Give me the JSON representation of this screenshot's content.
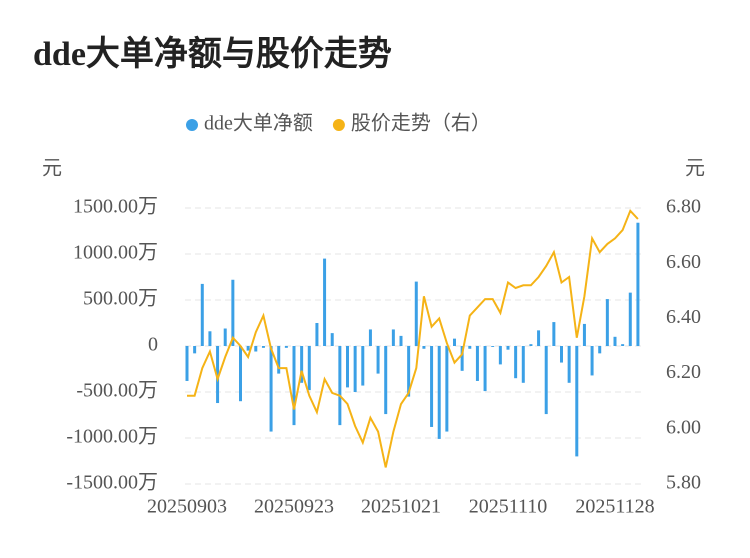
{
  "chart_data": {
    "type": "bar_line",
    "title": "dde大单净额与股价走势",
    "y_unit": "元",
    "y2_unit": "元",
    "categories": [
      "20250903",
      null,
      null,
      null,
      null,
      null,
      null,
      null,
      null,
      null,
      null,
      null,
      null,
      null,
      "20250923",
      null,
      null,
      null,
      null,
      null,
      null,
      null,
      null,
      null,
      null,
      null,
      null,
      null,
      "20251021",
      null,
      null,
      null,
      null,
      null,
      null,
      null,
      null,
      null,
      null,
      null,
      null,
      null,
      "20251110",
      null,
      null,
      null,
      null,
      null,
      null,
      null,
      null,
      null,
      null,
      null,
      null,
      null,
      "20251128",
      null,
      null,
      null
    ],
    "series": [
      {
        "name": "dde大单净额",
        "type": "bar",
        "color": "#3ba0e6",
        "values": [
          -380,
          -80,
          675,
          160,
          -620,
          190,
          720,
          -600,
          -50,
          -60,
          -20,
          -930,
          -300,
          -20,
          -860,
          -400,
          -480,
          250,
          950,
          140,
          -860,
          -450,
          -500,
          -430,
          180,
          -300,
          -740,
          180,
          110,
          -550,
          700,
          -30,
          -880,
          -1010,
          -930,
          80,
          -270,
          -30,
          -380,
          -490,
          -10,
          -200,
          -40,
          -350,
          -400,
          20,
          170,
          -740,
          260,
          -180,
          -400,
          -1200,
          240,
          -320,
          -80,
          510,
          100,
          20,
          580,
          1340
        ]
      },
      {
        "name": "股价走势（右）",
        "type": "line",
        "axis": "y2",
        "color": "#f5b316",
        "values": [
          6.12,
          6.12,
          6.22,
          6.28,
          6.18,
          6.26,
          6.33,
          6.3,
          6.26,
          6.35,
          6.41,
          6.29,
          6.22,
          6.22,
          6.07,
          6.21,
          6.12,
          6.06,
          6.18,
          6.13,
          6.12,
          6.09,
          6.01,
          5.95,
          6.04,
          5.99,
          5.86,
          5.99,
          6.09,
          6.13,
          6.22,
          6.48,
          6.37,
          6.4,
          6.31,
          6.24,
          6.27,
          6.41,
          6.44,
          6.47,
          6.47,
          6.42,
          6.53,
          6.51,
          6.52,
          6.52,
          6.55,
          6.59,
          6.64,
          6.53,
          6.55,
          6.33,
          6.48,
          6.69,
          6.64,
          6.67,
          6.69,
          6.72,
          6.79,
          6.76
        ]
      }
    ],
    "ylim": [
      -1500,
      1500
    ],
    "yticks": [
      {
        "value": -1500,
        "label": "-1500.00万"
      },
      {
        "value": -1000,
        "label": "-1000.00万"
      },
      {
        "value": -500,
        "label": "-500.00万"
      },
      0,
      {
        "value": 500,
        "label": "500.00万"
      },
      {
        "value": 1000,
        "label": "1000.00万"
      },
      {
        "value": 1500,
        "label": "1500.00万"
      }
    ],
    "y2lim": [
      5.8,
      6.8
    ],
    "y2ticks": [
      {
        "value": 5.8,
        "label": "5.80"
      },
      {
        "value": 6.0,
        "label": "6.00"
      },
      {
        "value": 6.2,
        "label": "6.20"
      },
      {
        "value": 6.4,
        "label": "6.40"
      },
      {
        "value": 6.6,
        "label": "6.60"
      },
      {
        "value": 6.8,
        "label": "6.80"
      }
    ],
    "grid": true
  }
}
